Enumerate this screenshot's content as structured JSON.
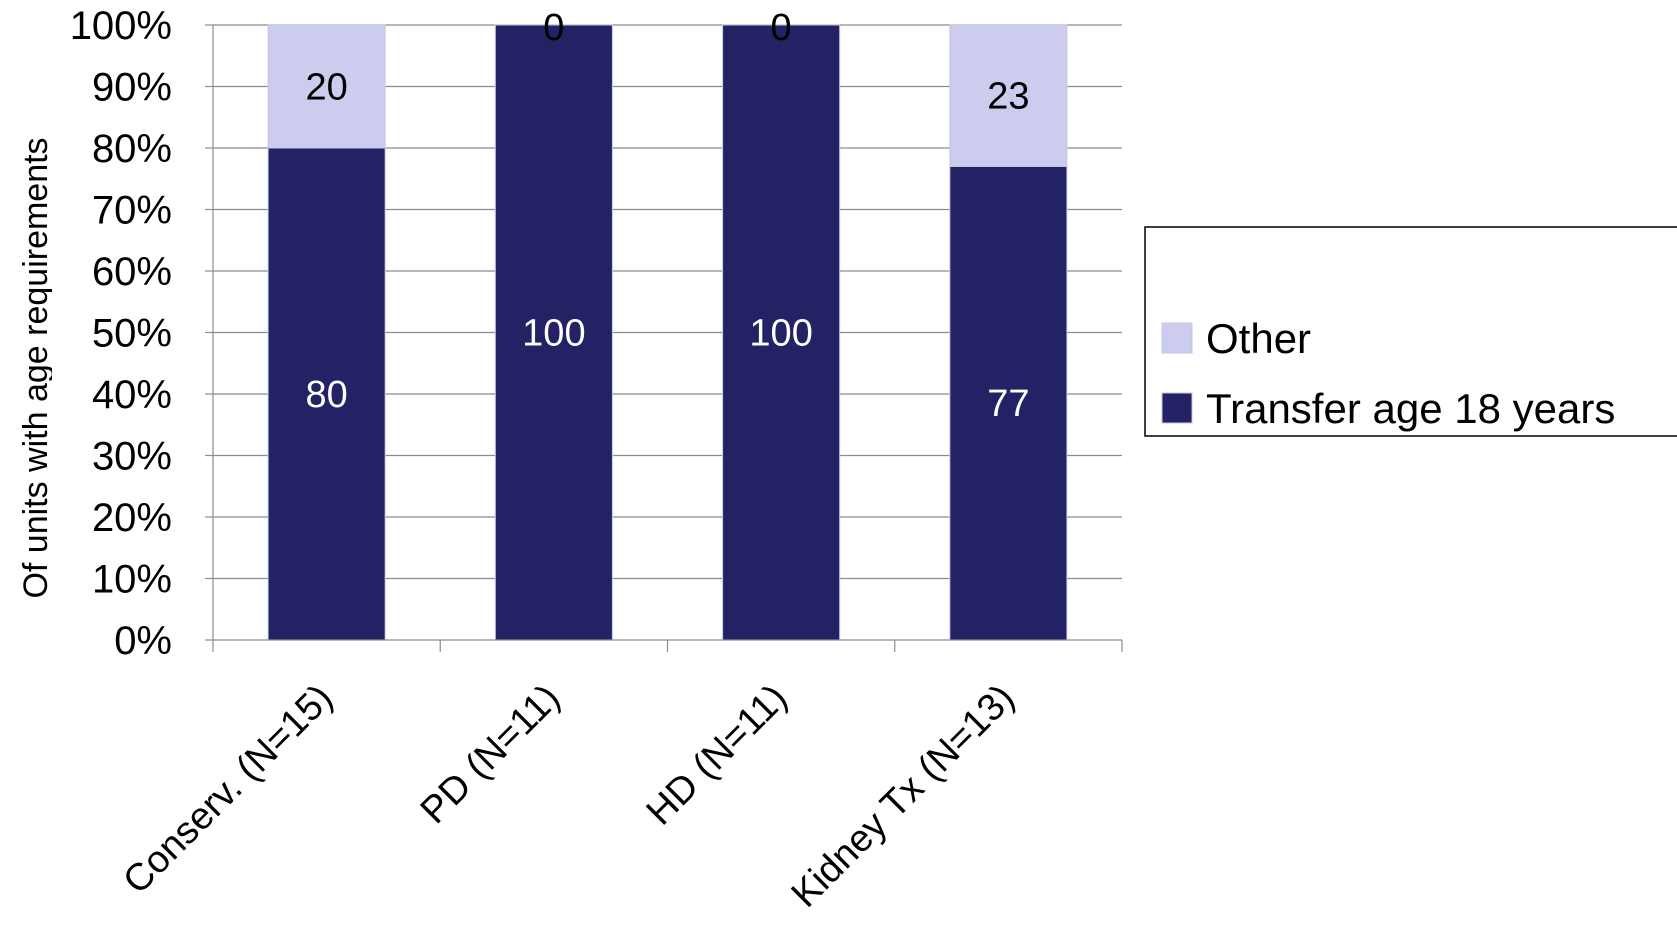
{
  "chart_data": {
    "type": "bar",
    "stacked": true,
    "categories": [
      "Conserv. (N=15)",
      "PD (N=11)",
      "HD (N=11)",
      "Kidney Tx (N=13)"
    ],
    "series": [
      {
        "name": "Transfer age 18 years",
        "values": [
          80,
          100,
          100,
          77
        ],
        "color": "#232264",
        "label_color": "#ffffff"
      },
      {
        "name": "Other",
        "values": [
          20,
          0,
          0,
          23
        ],
        "color": "#cccdee",
        "label_color": "#000000"
      }
    ],
    "ylabel": "Of units with age requirements",
    "ylim": [
      0,
      100
    ],
    "ytick_labels": [
      "0%",
      "10%",
      "20%",
      "30%",
      "40%",
      "50%",
      "60%",
      "70%",
      "80%",
      "90%",
      "100%"
    ],
    "grid": true,
    "legend": {
      "position": "right",
      "order": [
        "Other",
        "Transfer age 18 years"
      ]
    }
  }
}
